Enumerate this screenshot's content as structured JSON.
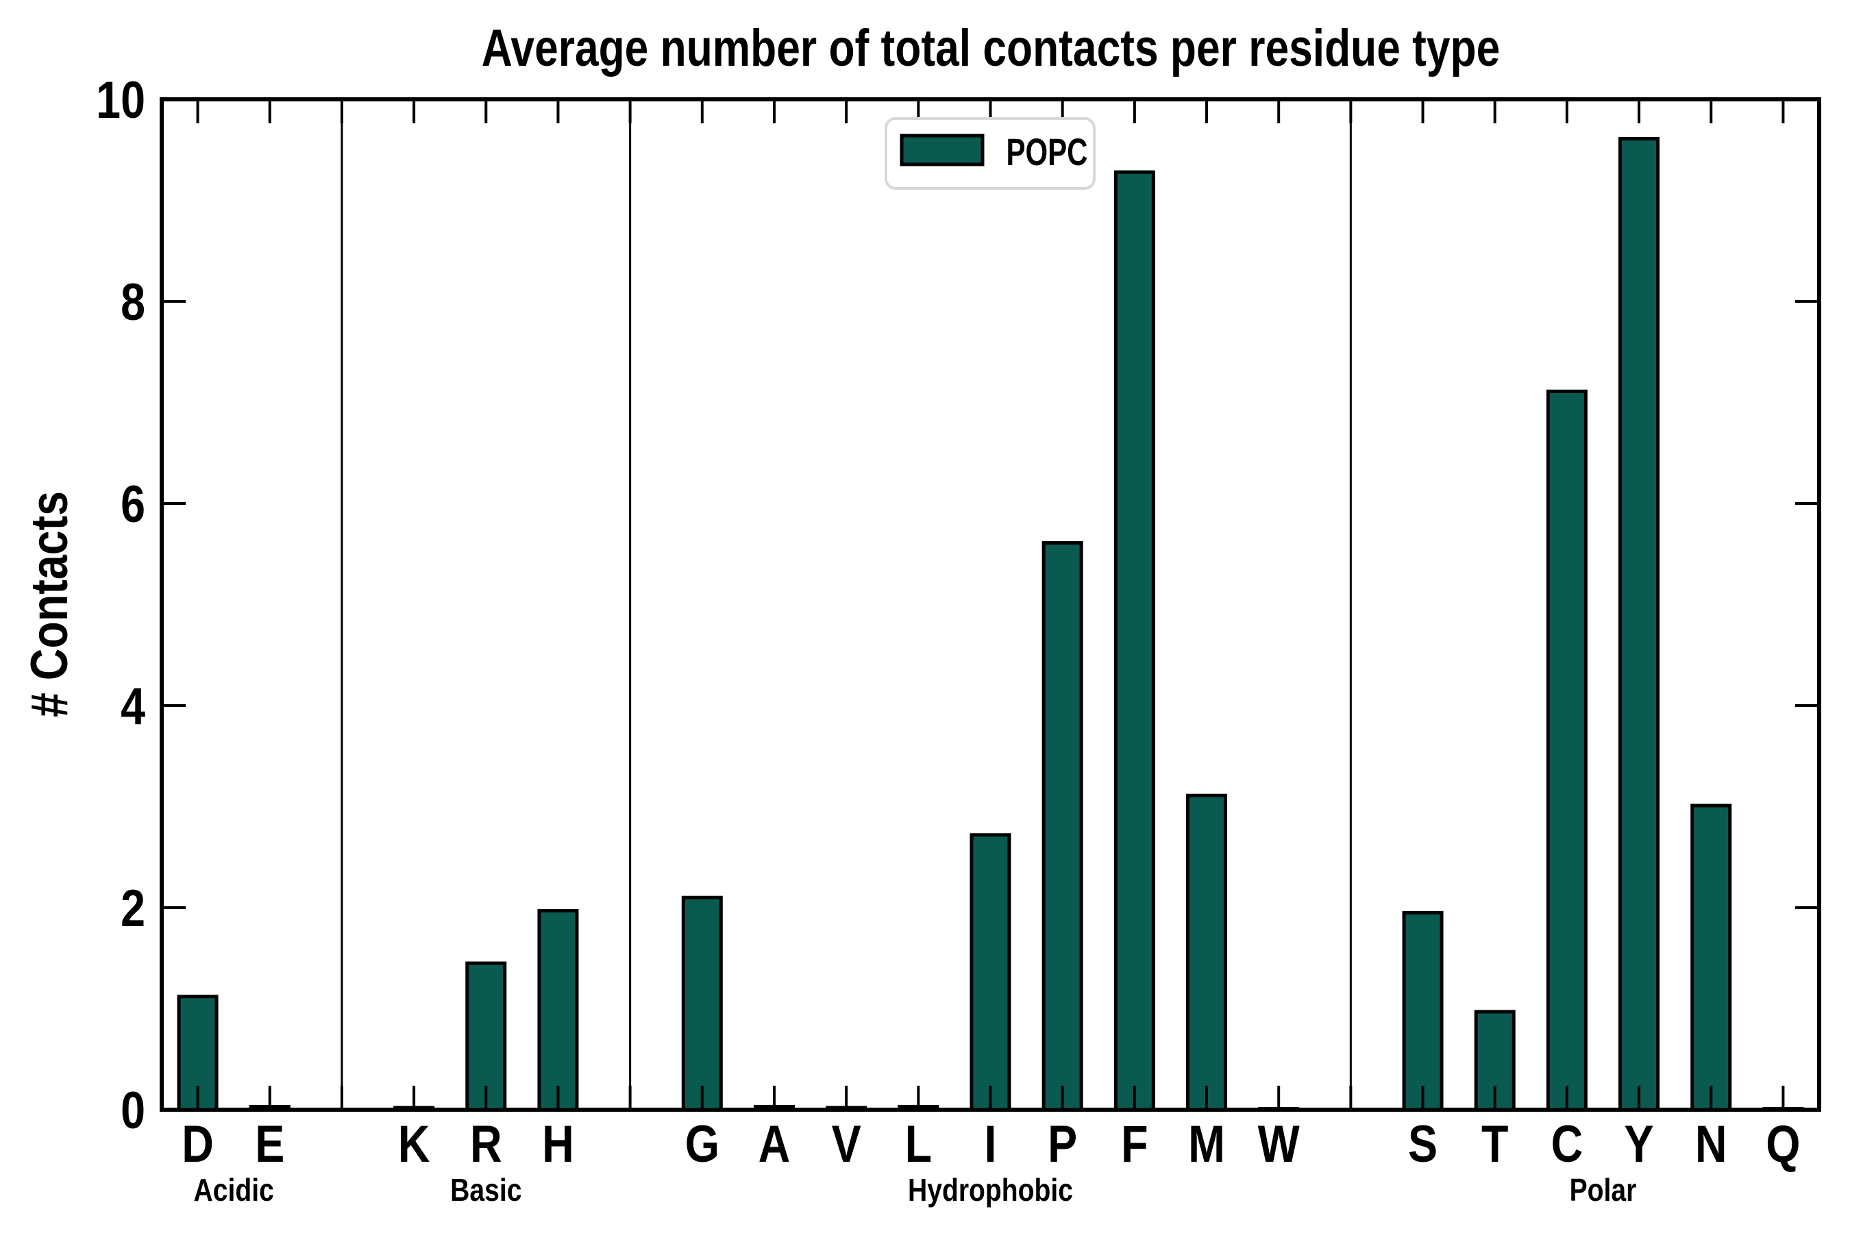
{
  "page": {
    "background_color": "#ffffff",
    "accent_color": "#0a5a50"
  },
  "chart_data": {
    "type": "bar",
    "title": "Average number of total contacts per residue type",
    "ylabel": "# Contacts",
    "xlabel": "",
    "ylim": [
      0,
      10
    ],
    "yticks": [
      0,
      2,
      4,
      6,
      8,
      10
    ],
    "grid": false,
    "legend_position": "top-center",
    "bar_color": "#0a5a50",
    "bar_edge_color": "#000000",
    "separator_color": "#000000",
    "legend": [
      {
        "label": "POPC",
        "color": "#0a5a50"
      }
    ],
    "groups": [
      {
        "label": "Acidic",
        "categories": [
          "D",
          "E"
        ],
        "values": [
          1.12,
          0.03
        ]
      },
      {
        "label": "Basic",
        "categories": [
          "K",
          "R",
          "H"
        ],
        "values": [
          0.02,
          1.45,
          1.97
        ]
      },
      {
        "label": "Hydrophobic",
        "categories": [
          "G",
          "A",
          "V",
          "L",
          "I",
          "P",
          "F",
          "M",
          "W"
        ],
        "values": [
          2.1,
          0.03,
          0.02,
          0.03,
          2.72,
          5.61,
          9.28,
          3.11,
          0.01
        ]
      },
      {
        "label": "Polar",
        "categories": [
          "S",
          "T",
          "C",
          "Y",
          "N",
          "Q"
        ],
        "values": [
          1.95,
          0.97,
          7.11,
          9.61,
          3.01,
          0.01
        ]
      }
    ]
  }
}
